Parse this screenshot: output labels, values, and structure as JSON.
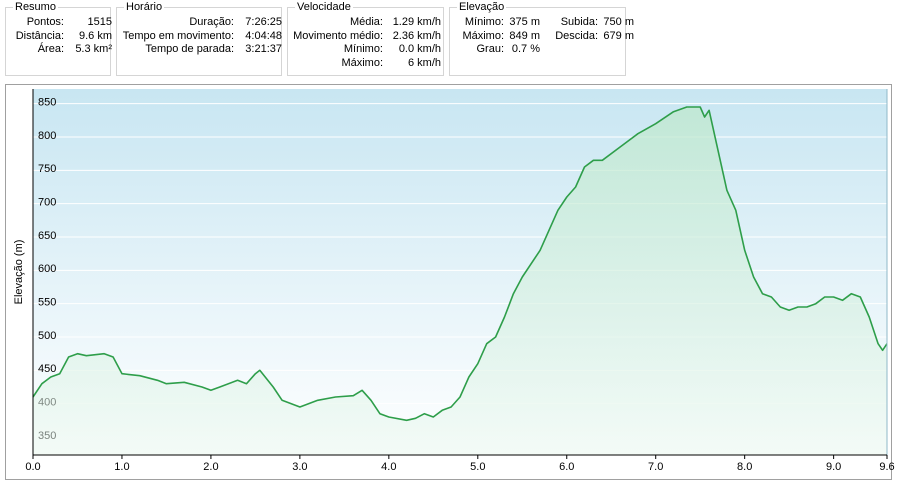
{
  "panels": [
    {
      "title": "Resumo",
      "rows": [
        [
          "Pontos:",
          "1515"
        ],
        [
          "Distância:",
          "9.6 km"
        ],
        [
          "Área:",
          "5.3 km²"
        ]
      ]
    },
    {
      "title": "Horário",
      "rows": [
        [
          "Duração:",
          "7:26:25"
        ],
        [
          "Tempo em movimento:",
          "4:04:48"
        ],
        [
          "Tempo de parada:",
          "3:21:37"
        ]
      ]
    },
    {
      "title": "Velocidade",
      "rows": [
        [
          "Média:",
          "1.29 km/h"
        ],
        [
          "Movimento médio:",
          "2.36 km/h"
        ],
        [
          "Mínimo:",
          "0.0 km/h"
        ],
        [
          "Máximo:",
          "6 km/h"
        ]
      ]
    },
    {
      "title": "Elevação",
      "rows": [
        [
          "Mínimo:",
          "375 m",
          "Subida:",
          "750 m"
        ],
        [
          "Máximo:",
          "849 m",
          "Descida:",
          "679 m"
        ],
        [
          "Grau:",
          "0.7 %"
        ]
      ]
    }
  ],
  "chart_data": {
    "type": "line",
    "y_label": "Elevação (m)",
    "x": [
      0,
      0.1,
      0.2,
      0.3,
      0.4,
      0.5,
      0.6,
      0.8,
      0.9,
      1.0,
      1.2,
      1.4,
      1.5,
      1.7,
      1.9,
      2.0,
      2.1,
      2.3,
      2.4,
      2.5,
      2.55,
      2.7,
      2.8,
      3.0,
      3.2,
      3.4,
      3.6,
      3.7,
      3.8,
      3.9,
      4.0,
      4.2,
      4.3,
      4.4,
      4.5,
      4.6,
      4.7,
      4.8,
      4.9,
      5.0,
      5.1,
      5.2,
      5.3,
      5.4,
      5.5,
      5.7,
      5.9,
      6.0,
      6.1,
      6.2,
      6.3,
      6.4,
      6.6,
      6.8,
      7.0,
      7.2,
      7.35,
      7.5,
      7.55,
      7.6,
      7.7,
      7.8,
      7.9,
      8.0,
      8.1,
      8.2,
      8.3,
      8.4,
      8.5,
      8.6,
      8.7,
      8.8,
      8.9,
      9.0,
      9.1,
      9.2,
      9.3,
      9.4,
      9.5,
      9.55,
      9.6
    ],
    "series": [
      {
        "color": "#2e9e4a",
        "values": [
          410,
          430,
          440,
          445,
          470,
          475,
          472,
          475,
          470,
          445,
          442,
          435,
          430,
          432,
          425,
          420,
          425,
          435,
          430,
          445,
          450,
          425,
          405,
          395,
          405,
          410,
          412,
          420,
          405,
          385,
          380,
          375,
          378,
          385,
          380,
          390,
          395,
          410,
          440,
          460,
          490,
          500,
          530,
          565,
          590,
          630,
          690,
          710,
          725,
          755,
          765,
          765,
          785,
          805,
          820,
          838,
          845,
          845,
          830,
          840,
          780,
          720,
          690,
          630,
          590,
          565,
          560,
          545,
          540,
          545,
          545,
          550,
          560,
          560,
          555,
          565,
          560,
          530,
          490,
          480,
          490
        ]
      }
    ],
    "xlim": [
      0,
      9.6
    ],
    "ylim": [
      323,
      872
    ],
    "xticks": [
      {
        "value": 0,
        "label": "0.0"
      },
      {
        "value": 1,
        "label": "1.0"
      },
      {
        "value": 2,
        "label": "2.0"
      },
      {
        "value": 3,
        "label": "3.0"
      },
      {
        "value": 4,
        "label": "4.0"
      },
      {
        "value": 5,
        "label": "5.0"
      },
      {
        "value": 6,
        "label": "6.0"
      },
      {
        "value": 7,
        "label": "7.0"
      },
      {
        "value": 8,
        "label": "8.0"
      },
      {
        "value": 9,
        "label": "9.0"
      },
      {
        "value": 9.6,
        "label": "9.6"
      }
    ],
    "yticks": [
      350,
      400,
      450,
      500,
      550,
      600,
      650,
      700,
      750,
      800,
      850
    ],
    "grid": true
  }
}
